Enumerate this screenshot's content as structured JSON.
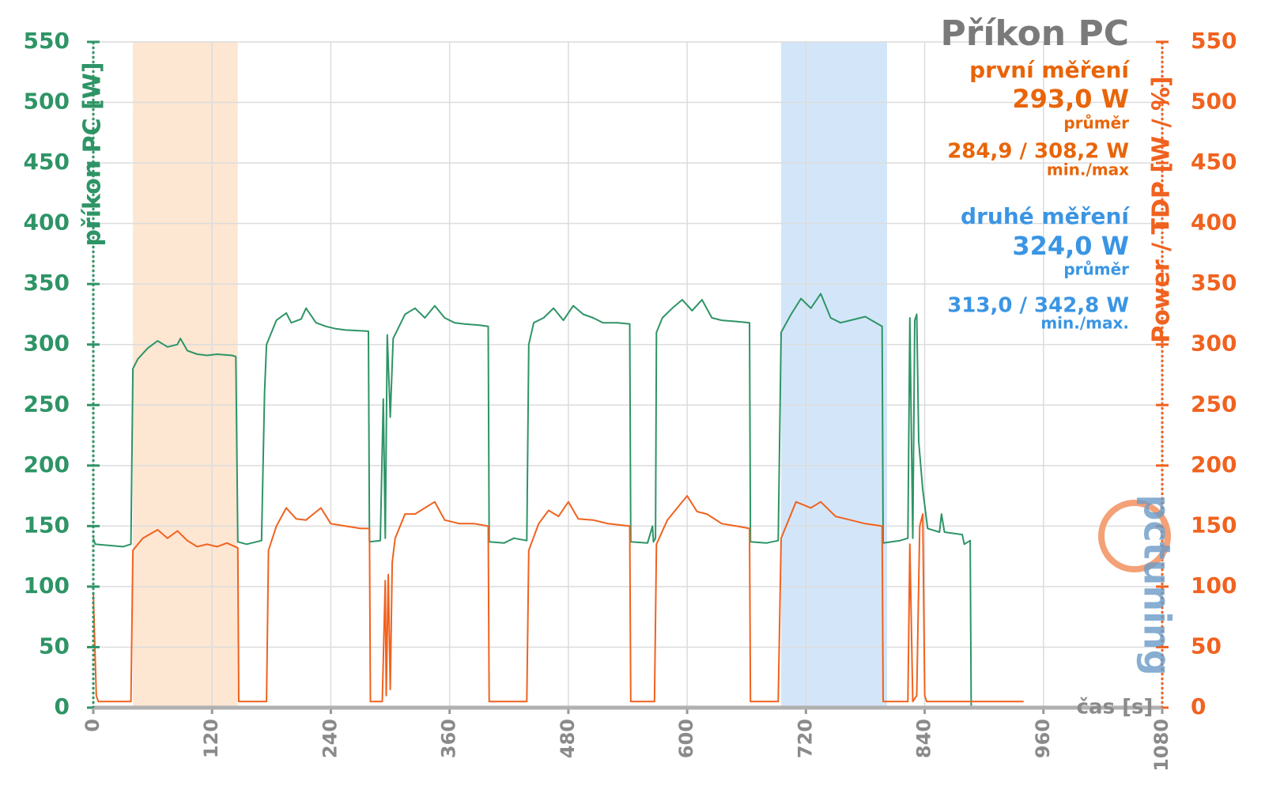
{
  "chart_data": {
    "type": "line",
    "title": "Příkon PC",
    "y_label": "příkon PC [W]",
    "y2_label": "Power / TDP [W / %]",
    "x_label": "čas [s]",
    "logo": "pctuning",
    "xlim": [
      0,
      1080
    ],
    "xticks": [
      0,
      120,
      240,
      360,
      480,
      600,
      720,
      840,
      960,
      1080
    ],
    "ylim": [
      0,
      550
    ],
    "yticks": [
      0,
      50,
      100,
      150,
      200,
      250,
      300,
      350,
      400,
      450,
      500,
      550
    ],
    "y2lim": [
      0,
      550
    ],
    "y2ticks": [
      0,
      50,
      100,
      150,
      200,
      250,
      300,
      350,
      400,
      450,
      500,
      550
    ],
    "grid": true,
    "highlights": [
      {
        "from": 40,
        "to": 146,
        "color": "#fde6d2"
      },
      {
        "from": 695,
        "to": 802,
        "color": "#d3e6f9"
      }
    ],
    "annotations": [
      {
        "text": "první měření",
        "color": "#e8650a"
      },
      {
        "text": "293,0 W",
        "color": "#e8650a"
      },
      {
        "text": "průměr",
        "color": "#e8650a"
      },
      {
        "text": "284,9 / 308,2 W",
        "color": "#e8650a"
      },
      {
        "text": "min./max",
        "color": "#e8650a"
      },
      {
        "text": "druhé měření",
        "color": "#3a95e4"
      },
      {
        "text": "324,0 W",
        "color": "#3a95e4"
      },
      {
        "text": "průměr",
        "color": "#3a95e4"
      },
      {
        "text": "313,0 / 342,8 W",
        "color": "#3a95e4"
      },
      {
        "text": "min./max.",
        "color": "#3a95e4"
      }
    ],
    "series": [
      {
        "name": "příkon PC",
        "color": "#2e9466",
        "axis": "y",
        "x": [
          0,
          2,
          30,
          38,
          40,
          45,
          55,
          65,
          75,
          85,
          88,
          95,
          105,
          115,
          125,
          140,
          144,
          146,
          155,
          170,
          173,
          175,
          185,
          195,
          200,
          210,
          215,
          225,
          235,
          245,
          255,
          278,
          279,
          290,
          293,
          295,
          297,
          300,
          303,
          315,
          325,
          335,
          345,
          355,
          365,
          375,
          390,
          399,
          400,
          415,
          425,
          438,
          440,
          445,
          455,
          465,
          475,
          485,
          495,
          505,
          515,
          530,
          542,
          543,
          560,
          565,
          566,
          568,
          569,
          575,
          585,
          595,
          605,
          615,
          625,
          635,
          650,
          663,
          664,
          680,
          692,
          695,
          705,
          715,
          725,
          735,
          745,
          755,
          765,
          780,
          797,
          798,
          815,
          823,
          825,
          828,
          830,
          832,
          834,
          838,
          843,
          855,
          857,
          860,
          878,
          880,
          886,
          887,
          940
        ],
        "values": [
          140,
          135,
          133,
          135,
          280,
          288,
          297,
          303,
          298,
          300,
          305,
          295,
          292,
          291,
          292,
          291,
          290,
          137,
          135,
          138,
          260,
          300,
          320,
          326,
          318,
          321,
          330,
          318,
          315,
          313,
          312,
          311,
          137,
          138,
          255,
          140,
          308,
          240,
          305,
          325,
          330,
          322,
          332,
          322,
          318,
          317,
          316,
          315,
          137,
          136,
          140,
          138,
          300,
          318,
          322,
          330,
          320,
          332,
          325,
          322,
          318,
          318,
          317,
          137,
          136,
          150,
          137,
          140,
          310,
          322,
          330,
          337,
          328,
          337,
          322,
          320,
          319,
          318,
          137,
          136,
          138,
          310,
          325,
          338,
          330,
          342,
          322,
          318,
          320,
          323,
          315,
          136,
          138,
          140,
          322,
          140,
          320,
          325,
          220,
          180,
          148,
          145,
          160,
          145,
          143,
          135,
          138,
          0,
          0
        ]
      },
      {
        "name": "Power / TDP",
        "color": "#f0621f",
        "axis": "y2",
        "x": [
          0,
          3,
          5,
          38,
          40,
          50,
          65,
          75,
          85,
          95,
          105,
          115,
          125,
          135,
          146,
          147,
          175,
          177,
          185,
          195,
          205,
          215,
          230,
          240,
          255,
          270,
          279,
          280,
          292,
          295,
          296,
          298,
          300,
          302,
          305,
          315,
          325,
          345,
          355,
          370,
          385,
          399,
          400,
          438,
          440,
          450,
          460,
          470,
          480,
          490,
          505,
          520,
          542,
          543,
          567,
          569,
          580,
          590,
          600,
          610,
          620,
          635,
          650,
          663,
          664,
          692,
          695,
          710,
          725,
          735,
          750,
          765,
          780,
          797,
          798,
          823,
          825,
          828,
          832,
          835,
          838,
          840,
          842,
          860,
          940
        ],
        "values": [
          95,
          10,
          5,
          5,
          130,
          140,
          147,
          140,
          146,
          138,
          133,
          135,
          133,
          136,
          132,
          5,
          5,
          130,
          150,
          165,
          156,
          155,
          165,
          152,
          150,
          148,
          148,
          5,
          5,
          105,
          10,
          110,
          15,
          120,
          140,
          160,
          160,
          170,
          155,
          152,
          152,
          150,
          5,
          5,
          130,
          152,
          163,
          158,
          170,
          156,
          155,
          152,
          150,
          5,
          5,
          135,
          155,
          165,
          175,
          162,
          160,
          152,
          150,
          148,
          5,
          5,
          140,
          170,
          165,
          170,
          158,
          155,
          152,
          150,
          5,
          5,
          135,
          5,
          10,
          150,
          160,
          10,
          5,
          5,
          5
        ]
      }
    ]
  }
}
